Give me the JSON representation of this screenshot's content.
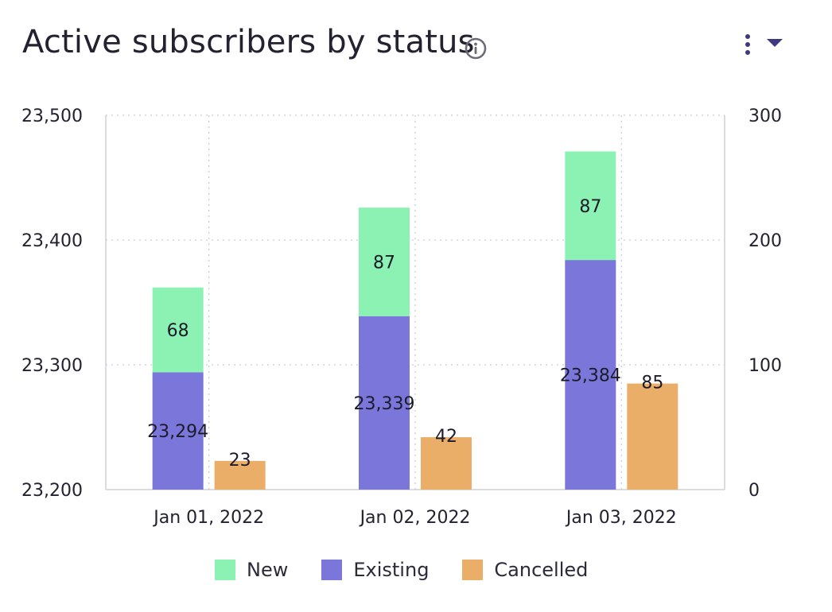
{
  "header": {
    "title": "Active subscribers by status",
    "icons": [
      "info-icon",
      "more-vertical-icon",
      "caret-down-icon"
    ]
  },
  "colors": {
    "new": "#8cf2b4",
    "existing": "#7b76d9",
    "cancelled": "#ebae69",
    "menu": "#3d3880"
  },
  "chart_data": {
    "type": "bar",
    "title": "Active subscribers by status",
    "categories": [
      "Jan 01, 2022",
      "Jan 02, 2022",
      "Jan 03, 2022"
    ],
    "series": [
      {
        "name": "Existing",
        "axis": "left",
        "stack": "subscribers",
        "values": [
          23294,
          23339,
          23384
        ]
      },
      {
        "name": "New",
        "axis": "left",
        "stack": "subscribers",
        "values": [
          68,
          87,
          87
        ]
      },
      {
        "name": "Cancelled",
        "axis": "right",
        "stack": "cancelled",
        "values": [
          23,
          42,
          85
        ]
      }
    ],
    "y_left": {
      "range": [
        23200,
        23500
      ],
      "ticks": [
        "23,200",
        "23,300",
        "23,400",
        "23,500"
      ]
    },
    "y_right": {
      "range": [
        0,
        300
      ],
      "ticks": [
        "0",
        "100",
        "200",
        "300"
      ]
    },
    "data_labels": {
      "Existing": [
        "23,294",
        "23,339",
        "23,384"
      ],
      "New": [
        "68",
        "87",
        "87"
      ],
      "Cancelled": [
        "23",
        "42",
        "85"
      ]
    },
    "grid": true,
    "legend": {
      "position": "bottom",
      "entries": [
        "New",
        "Existing",
        "Cancelled"
      ]
    }
  }
}
